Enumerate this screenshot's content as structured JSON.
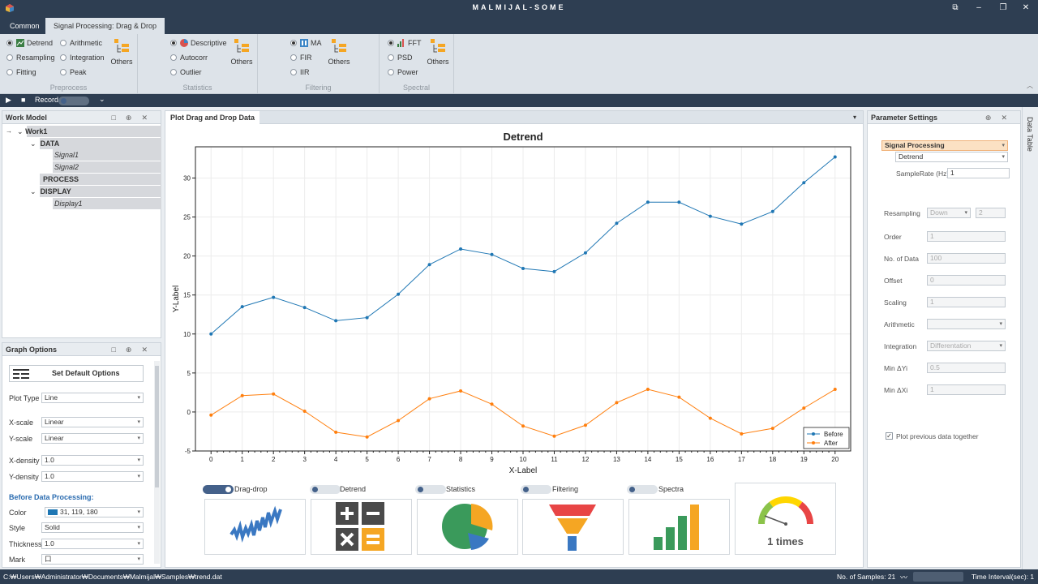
{
  "app": {
    "title": "MALMIJAL-SOME"
  },
  "tabs": [
    "Common",
    "Signal Processing: Drag & Drop"
  ],
  "ribbon": {
    "preprocess": {
      "label": "Preprocess",
      "items": [
        "Detrend",
        "Arithmetic",
        "Resampling",
        "Integration",
        "Fitting",
        "Peak"
      ],
      "others": "Others"
    },
    "statistics": {
      "label": "Statistics",
      "items": [
        "Descriptive",
        "Autocorr",
        "Outlier"
      ],
      "others": "Others"
    },
    "filtering": {
      "label": "Filtering",
      "items": [
        "MA",
        "FIR",
        "IIR"
      ],
      "others": "Others"
    },
    "spectral": {
      "label": "Spectral",
      "items": [
        "FFT",
        "PSD",
        "Power"
      ],
      "others": "Others"
    }
  },
  "record_bar": {
    "record_label": "Record"
  },
  "work_model": {
    "title": "Work Model",
    "root": "Work1",
    "nodes": [
      "DATA",
      "Signal1",
      "Signal2",
      "PROCESS",
      "DISPLAY",
      "Display1"
    ]
  },
  "graph_options": {
    "title": "Graph Options",
    "default_button": "Set Default Options",
    "plot_type_label": "Plot Type",
    "plot_type": "Line",
    "xscale_label": "X-scale",
    "xscale": "Linear",
    "yscale_label": "Y-scale",
    "yscale": "Linear",
    "xdensity_label": "X-density",
    "xdensity": "1.0",
    "ydensity_label": "Y-density",
    "ydensity": "1.0",
    "before_heading": "Before Data Processing:",
    "color_label": "Color",
    "color_value": "31, 119, 180",
    "color_swatch": "#1f77b4",
    "style_label": "Style",
    "style": "Solid",
    "thickness_label": "Thickness",
    "thickness": "1.0",
    "mark_label": "Mark",
    "mark": "口"
  },
  "plot_panel": {
    "title": "Plot Drag and Drop Data"
  },
  "chart_data": {
    "type": "line",
    "title": "Detrend",
    "xlabel": "X-Label",
    "ylabel": "Y-Label",
    "x": [
      0,
      1,
      2,
      3,
      4,
      5,
      6,
      7,
      8,
      9,
      10,
      11,
      12,
      13,
      14,
      15,
      16,
      17,
      18,
      19,
      20
    ],
    "xlim": [
      -0.5,
      20.5
    ],
    "ylim": [
      -5,
      34
    ],
    "yticks": [
      -5,
      0,
      5,
      10,
      15,
      20,
      25,
      30
    ],
    "grid": true,
    "legend_position": "bottom-right",
    "series": [
      {
        "name": "Before",
        "color": "#1f77b4",
        "values": [
          10.0,
          13.5,
          14.7,
          13.4,
          11.7,
          12.1,
          15.1,
          18.9,
          20.9,
          20.2,
          18.4,
          18.0,
          20.4,
          24.2,
          26.9,
          26.9,
          25.1,
          24.1,
          25.7,
          29.4,
          32.7
        ]
      },
      {
        "name": "After",
        "color": "#ff7f0e",
        "values": [
          -0.4,
          2.1,
          2.3,
          0.1,
          -2.6,
          -3.2,
          -1.1,
          1.7,
          2.7,
          1.0,
          -1.8,
          -3.1,
          -1.7,
          1.2,
          2.9,
          1.9,
          -0.8,
          -2.8,
          -2.1,
          0.5,
          2.9
        ]
      }
    ]
  },
  "drop_targets": {
    "toggles": [
      "Drag-drop",
      "Detrend",
      "Statistics",
      "Filtering",
      "Spectra"
    ],
    "gauge_text": "1 times"
  },
  "parameters": {
    "title": "Parameter Settings",
    "category": "Signal Processing",
    "method": "Detrend",
    "sample_rate_label": "SampleRate (Hz)",
    "sample_rate": "1",
    "resampling_label": "Resampling",
    "resampling_mode": "Down",
    "resampling_factor": "2",
    "order_label": "Order",
    "order": "1",
    "ndata_label": "No. of Data",
    "ndata": "100",
    "offset_label": "Offset",
    "offset": "0",
    "scaling_label": "Scaling",
    "scaling": "1",
    "arithmetic_label": "Arithmetic",
    "arithmetic": "",
    "integration_label": "Integration",
    "integration": "Differentation",
    "min_dyi_label": "Min ΔYi",
    "min_dyi": "0.5",
    "min_dxi_label": "Min ΔXi",
    "min_dxi": "1",
    "plot_prev_label": "Plot previous data together"
  },
  "side_tab": "Data Table",
  "status": {
    "path": "C:₩Users₩Administrator₩Documents₩Malmijal₩Samples₩trend.dat",
    "samples": "No. of Samples: 21",
    "interval": "Time Interval(sec): 1"
  }
}
